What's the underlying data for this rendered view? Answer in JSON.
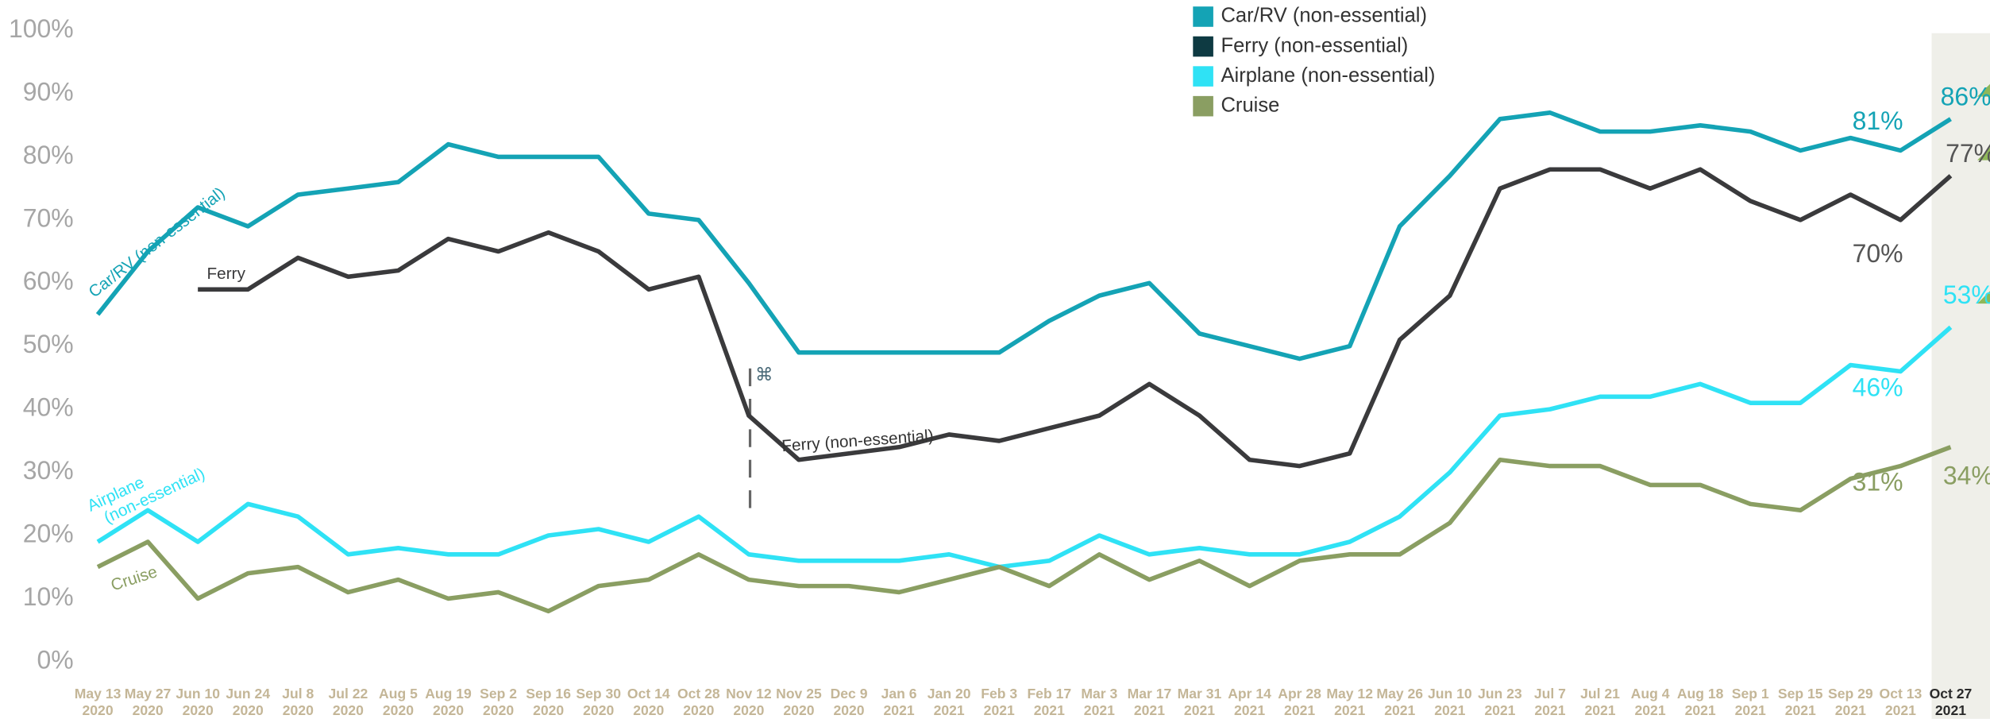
{
  "chart_data": {
    "type": "line",
    "categories": [
      "May 13",
      "May 27",
      "Jun 10",
      "Jun 24",
      "Jul 8",
      "Jul 22",
      "Aug 5",
      "Aug 19",
      "Sep 2",
      "Sep 16",
      "Sep 30",
      "Oct 14",
      "Oct 28",
      "Nov 12",
      "Nov 25",
      "Dec 9",
      "Jan 6",
      "Jan 20",
      "Feb 3",
      "Feb 17",
      "Mar 3",
      "Mar 17",
      "Mar 31",
      "Apr 14",
      "Apr 28",
      "May 12",
      "May 26",
      "Jun 10",
      "Jun 23",
      "Jul 7",
      "Jul 21",
      "Aug 4",
      "Aug 18",
      "Sep 1",
      "Sep 15",
      "Sep 29",
      "Oct 13",
      "Oct 27"
    ],
    "category_years": [
      "2020",
      "2020",
      "2020",
      "2020",
      "2020",
      "2020",
      "2020",
      "2020",
      "2020",
      "2020",
      "2020",
      "2020",
      "2020",
      "2020",
      "2020",
      "2020",
      "2021",
      "2021",
      "2021",
      "2021",
      "2021",
      "2021",
      "2021",
      "2021",
      "2021",
      "2021",
      "2021",
      "2021",
      "2021",
      "2021",
      "2021",
      "2021",
      "2021",
      "2021",
      "2021",
      "2021",
      "2021",
      "2021"
    ],
    "ylim": [
      0,
      100
    ],
    "yticks": [
      {
        "value": 0,
        "label": "0%"
      },
      {
        "value": 10,
        "label": "10%"
      },
      {
        "value": 20,
        "label": "20%"
      },
      {
        "value": 30,
        "label": "30%"
      },
      {
        "value": 40,
        "label": "40%"
      },
      {
        "value": 50,
        "label": "50%"
      },
      {
        "value": 60,
        "label": "60%"
      },
      {
        "value": 70,
        "label": "70%"
      },
      {
        "value": 80,
        "label": "80%"
      },
      {
        "value": 90,
        "label": "90%"
      },
      {
        "value": 100,
        "label": "100%"
      }
    ],
    "legend": "top-right",
    "series": [
      {
        "name": "Car/RV (non-essential)",
        "inline_label": "Car/RV (non-essential)",
        "color": "#14a3b5",
        "legend_color": "#14a3b5",
        "values": [
          55,
          65,
          72,
          69,
          74,
          75,
          76,
          82,
          80,
          80,
          80,
          71,
          70,
          60,
          49,
          49,
          49,
          49,
          49,
          54,
          58,
          60,
          52,
          50,
          48,
          50,
          69,
          77,
          86,
          87,
          84,
          84,
          85,
          84,
          81,
          83,
          81,
          86
        ],
        "value_labels": [
          null,
          null,
          null,
          null,
          null,
          null,
          null,
          null,
          null,
          null,
          null,
          null,
          null,
          null,
          null,
          null,
          null,
          null,
          null,
          null,
          null,
          null,
          null,
          null,
          null,
          null,
          null,
          null,
          null,
          null,
          null,
          null,
          null,
          null,
          null,
          null,
          "81%",
          "86%"
        ]
      },
      {
        "name": "Ferry (non-essential)",
        "inline_label": "Ferry",
        "color": "#3a3a3c",
        "legend_color": "#0e3a42",
        "values": [
          null,
          null,
          59,
          59,
          64,
          61,
          62,
          67,
          65,
          68,
          65,
          59,
          61,
          39,
          32,
          33,
          34,
          36,
          35,
          37,
          39,
          44,
          39,
          32,
          31,
          33,
          51,
          58,
          75,
          78,
          78,
          75,
          78,
          73,
          70,
          74,
          70,
          77
        ],
        "value_labels": [
          null,
          null,
          null,
          null,
          null,
          null,
          null,
          null,
          null,
          null,
          null,
          null,
          null,
          null,
          null,
          null,
          null,
          null,
          null,
          null,
          null,
          null,
          null,
          null,
          null,
          null,
          null,
          null,
          null,
          null,
          null,
          null,
          null,
          null,
          null,
          null,
          "70%",
          "77%"
        ]
      },
      {
        "name": "Airplane (non-essential)",
        "inline_label": [
          "Airplane",
          "(non-essential)"
        ],
        "color": "#2fe2f5",
        "legend_color": "#2fe2f5",
        "values": [
          19,
          24,
          19,
          25,
          23,
          17,
          18,
          17,
          17,
          20,
          21,
          19,
          23,
          17,
          16,
          16,
          16,
          17,
          15,
          16,
          20,
          17,
          18,
          17,
          17,
          19,
          23,
          30,
          39,
          40,
          42,
          42,
          44,
          41,
          41,
          47,
          46,
          53
        ],
        "value_labels": [
          null,
          null,
          null,
          null,
          null,
          null,
          null,
          null,
          null,
          null,
          null,
          null,
          null,
          null,
          null,
          null,
          null,
          null,
          null,
          null,
          null,
          null,
          null,
          null,
          null,
          null,
          null,
          null,
          null,
          null,
          null,
          null,
          null,
          null,
          null,
          null,
          "46%",
          "53%"
        ]
      },
      {
        "name": "Cruise",
        "inline_label": "Cruise",
        "color": "#8a9e62",
        "legend_color": "#8a9e62",
        "values": [
          15,
          19,
          10,
          14,
          15,
          11,
          13,
          10,
          11,
          8,
          12,
          13,
          17,
          13,
          12,
          12,
          11,
          13,
          15,
          12,
          17,
          13,
          16,
          12,
          16,
          17,
          17,
          22,
          32,
          31,
          31,
          28,
          28,
          25,
          24,
          29,
          31,
          34
        ],
        "value_labels": [
          null,
          null,
          null,
          null,
          null,
          null,
          null,
          null,
          null,
          null,
          null,
          null,
          null,
          null,
          null,
          null,
          null,
          null,
          null,
          null,
          null,
          null,
          null,
          null,
          null,
          null,
          null,
          null,
          null,
          null,
          null,
          null,
          null,
          null,
          null,
          null,
          "31%",
          "34%"
        ]
      }
    ],
    "annotations": [
      "Ferry (non-essential)",
      "⌘"
    ]
  }
}
